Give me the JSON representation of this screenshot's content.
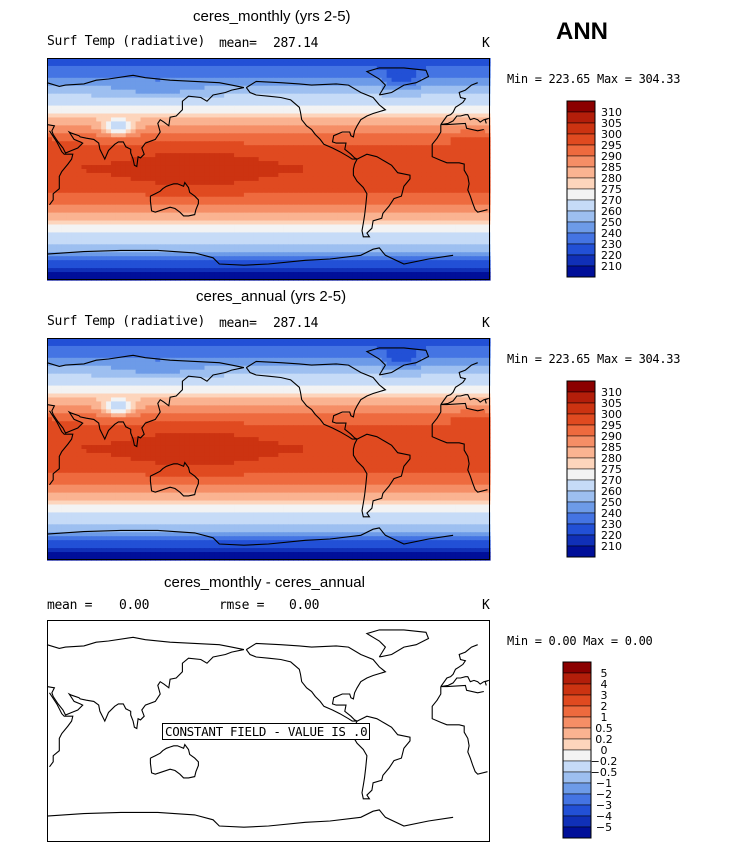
{
  "header": {
    "season": "ANN"
  },
  "panels": [
    {
      "title": "ceres_monthly (yrs 2-5)",
      "left_label": "Surf Temp (radiative)",
      "stat_label": "mean=",
      "stat_value": "287.14",
      "stat2_label": "",
      "stat2_value": "",
      "units": "K",
      "minmax": "Min = 223.65 Max = 304.33",
      "constant_note": "",
      "map_type": "field"
    },
    {
      "title": "ceres_annual (yrs 2-5)",
      "left_label": "Surf Temp (radiative)",
      "stat_label": "mean=",
      "stat_value": "287.14",
      "stat2_label": "",
      "stat2_value": "",
      "units": "K",
      "minmax": "Min = 223.65 Max = 304.33",
      "constant_note": "",
      "map_type": "field"
    },
    {
      "title": "ceres_monthly - ceres_annual",
      "left_label": "mean =",
      "stat_label": "",
      "stat_value": "0.00",
      "stat2_label": "rmse =",
      "stat2_value": "0.00",
      "units": "K",
      "minmax": "Min =   0.00 Max =   0.00",
      "constant_note": "CONSTANT FIELD - VALUE IS .0",
      "map_type": "diff"
    }
  ],
  "chart_data": [
    {
      "type": "heatmap",
      "title": "ceres_monthly (yrs 2-5)",
      "variable": "Surf Temp (radiative)",
      "units": "K",
      "mean": 287.14,
      "min": 223.65,
      "max": 304.33,
      "colorbar_levels": [
        310,
        305,
        300,
        295,
        290,
        285,
        280,
        275,
        270,
        260,
        250,
        240,
        230,
        220,
        210
      ],
      "colorbar_colors": [
        "#8b0000",
        "#b31e0a",
        "#cc3311",
        "#e04a20",
        "#ee6a3e",
        "#f58e66",
        "#fab391",
        "#fdd5bc",
        "#f3f3f3",
        "#c6dbf7",
        "#9dbff0",
        "#6d9be8",
        "#4474e3",
        "#2250d6",
        "#1030b8",
        "#000f99"
      ]
    },
    {
      "type": "heatmap",
      "title": "ceres_annual (yrs 2-5)",
      "variable": "Surf Temp (radiative)",
      "units": "K",
      "mean": 287.14,
      "min": 223.65,
      "max": 304.33,
      "colorbar_levels": [
        310,
        305,
        300,
        295,
        290,
        285,
        280,
        275,
        270,
        260,
        250,
        240,
        230,
        220,
        210
      ],
      "colorbar_colors": [
        "#8b0000",
        "#b31e0a",
        "#cc3311",
        "#e04a20",
        "#ee6a3e",
        "#f58e66",
        "#fab391",
        "#fdd5bc",
        "#f3f3f3",
        "#c6dbf7",
        "#9dbff0",
        "#6d9be8",
        "#4474e3",
        "#2250d6",
        "#1030b8",
        "#000f99"
      ]
    },
    {
      "type": "heatmap",
      "title": "ceres_monthly - ceres_annual",
      "units": "K",
      "mean": 0.0,
      "rmse": 0.0,
      "min": 0.0,
      "max": 0.0,
      "colorbar_levels": [
        "5",
        "4",
        "3",
        "2",
        "1",
        "0.5",
        "0.2",
        "0",
        "−0.2",
        "−0.5",
        "−1",
        "−2",
        "−3",
        "−4",
        "−5"
      ],
      "colorbar_colors": [
        "#8b0000",
        "#b31e0a",
        "#cc3311",
        "#e04a20",
        "#ee6a3e",
        "#f58e66",
        "#fab391",
        "#fdd5bc",
        "#f3f3f3",
        "#c6dbf7",
        "#9dbff0",
        "#6d9be8",
        "#4474e3",
        "#2250d6",
        "#1030b8",
        "#000f99"
      ]
    }
  ]
}
